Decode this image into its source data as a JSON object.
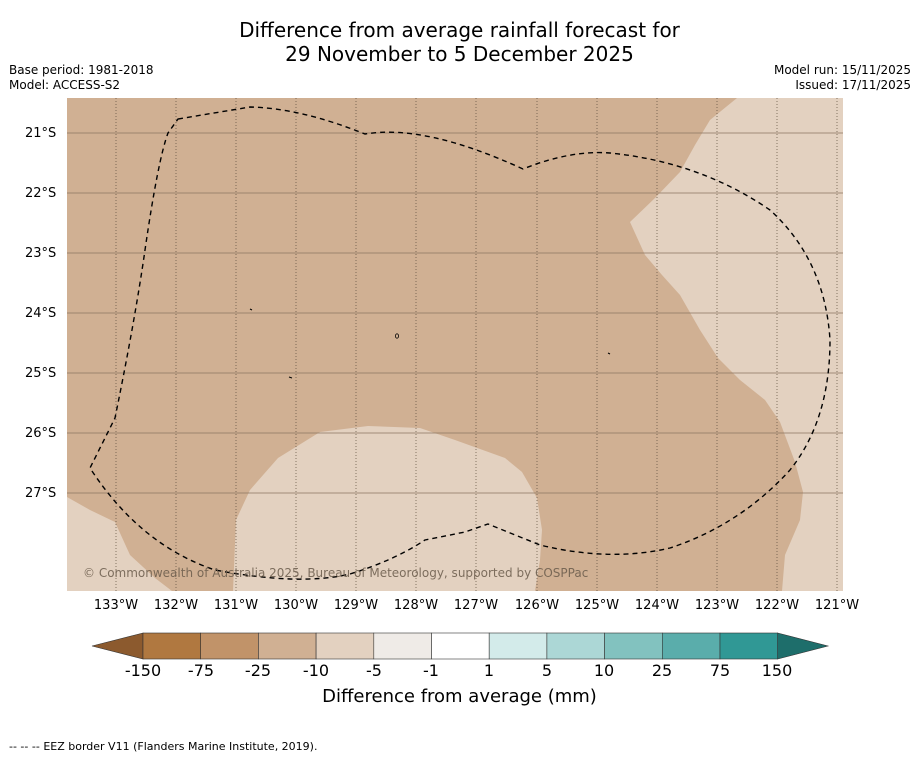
{
  "title": {
    "line1": "Difference from average rainfall forecast for",
    "line2": "29 November to 5 December 2025"
  },
  "meta": {
    "base_period": "Base period: 1981-2018",
    "model": "Model: ACCESS-S2",
    "model_run": "Model run: 15/11/2025",
    "issued": "Issued: 17/11/2025"
  },
  "map": {
    "lat_labels": [
      "21°S",
      "22°S",
      "23°S",
      "24°S",
      "25°S",
      "26°S",
      "27°S"
    ],
    "lon_labels": [
      "133°W",
      "132°W",
      "131°W",
      "130°W",
      "129°W",
      "128°W",
      "127°W",
      "126°W",
      "125°W",
      "124°W",
      "123°W",
      "122°W",
      "121°W"
    ],
    "copyright": "© Commonwealth of Australia 2025, Bureau of Meteorology, supported by COSPPac",
    "colors": {
      "band_minus25_minus10": "#d0b093",
      "band_minus10_minus5": "#e3d1c0",
      "eez_border": "#000000"
    }
  },
  "colorbar": {
    "labels": [
      "-150",
      "-75",
      "-25",
      "-10",
      "-5",
      "-1",
      "1",
      "5",
      "10",
      "25",
      "75",
      "150"
    ],
    "colors": [
      "#8c5a2e",
      "#b07840",
      "#c19369",
      "#d0b093",
      "#e3d1c0",
      "#efebe7",
      "#ffffff",
      "#d3ebea",
      "#acd7d6",
      "#82c2bf",
      "#5aadab",
      "#309895",
      "#1e6e6b"
    ],
    "title": "Difference from average (mm)"
  },
  "legend": {
    "symbol": "--  --  --",
    "text": "EEZ border V11 (Flanders Marine Institute, 2019)."
  }
}
